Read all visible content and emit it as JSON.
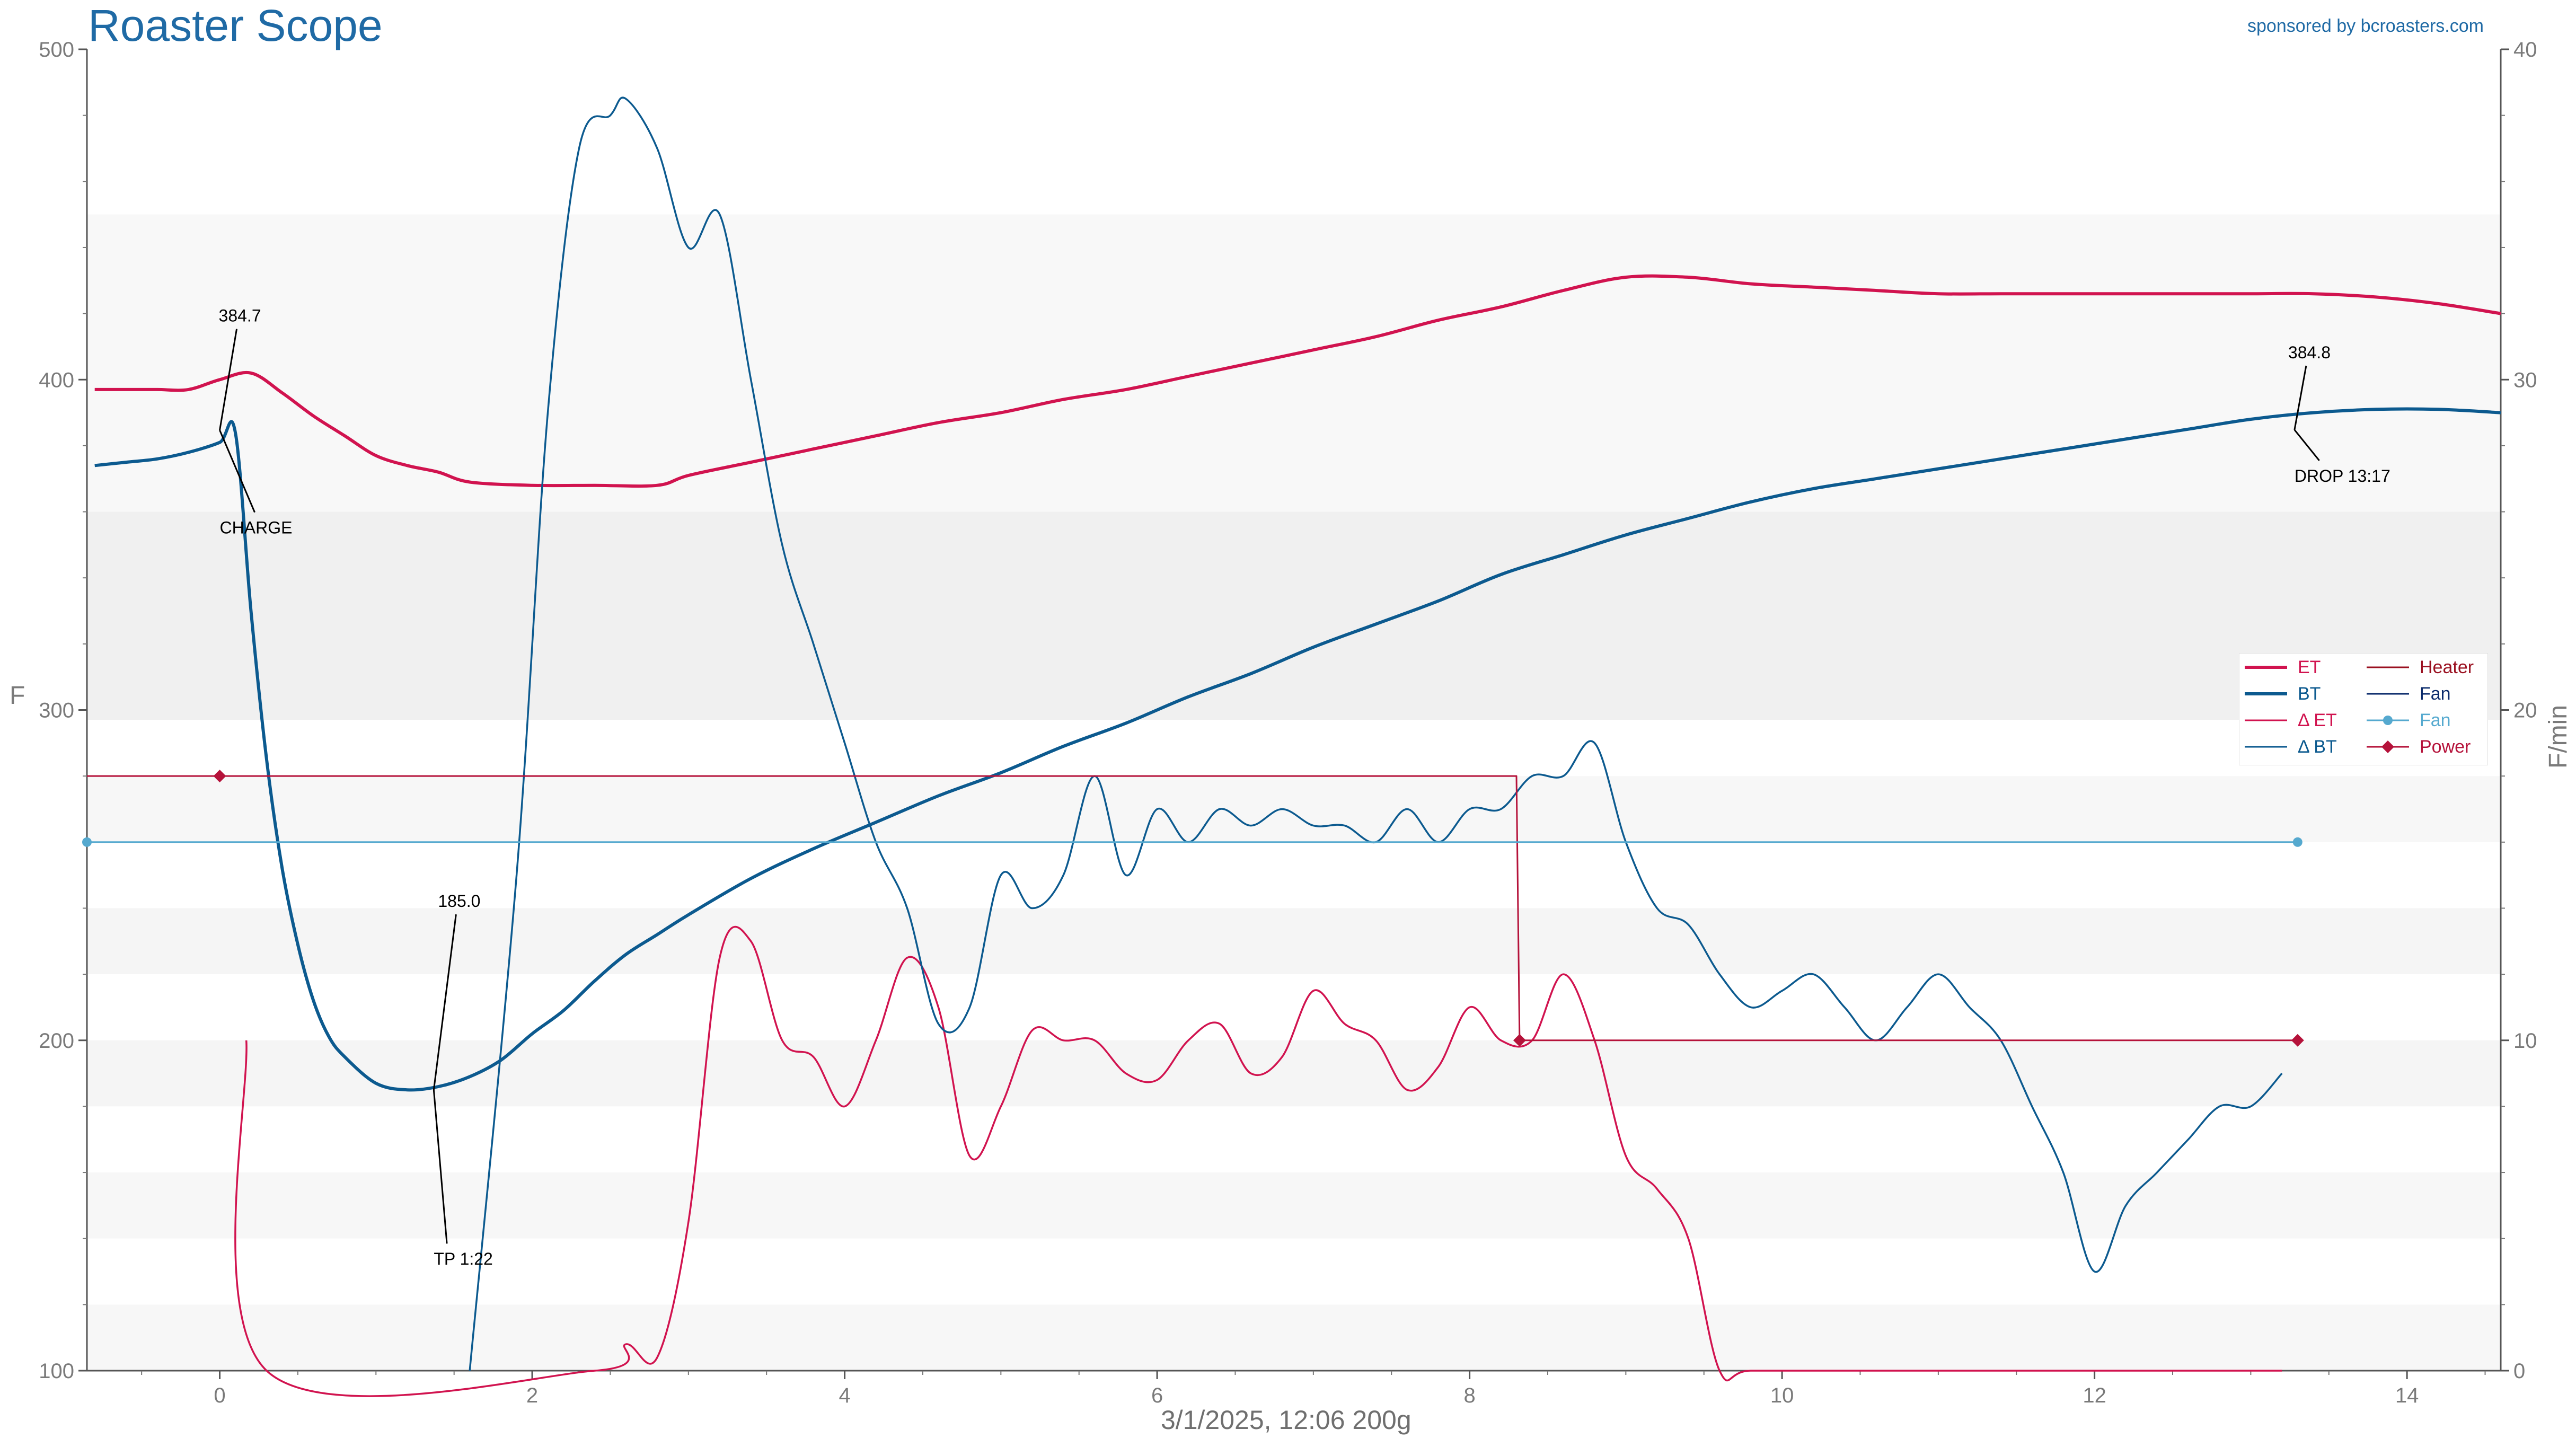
{
  "header": {
    "title": "Roaster Scope",
    "sponsor": "sponsored by bcroasters.com",
    "subtitle": "3/1/2025, 12:06   200g"
  },
  "colors": {
    "et": "#d1134f",
    "bt": "#0c5a8f",
    "delta_et": "#d1134f",
    "delta_bt": "#0c5a8f",
    "heater": "#b5123a",
    "fan": "#55a9cf",
    "power": "#b5123a",
    "title": "#1f6aa5"
  },
  "legend": [
    {
      "label": "ET",
      "color": "#d1134f",
      "style": "thick"
    },
    {
      "label": "BT",
      "color": "#0c5a8f",
      "style": "thick"
    },
    {
      "label": "Δ ET",
      "color": "#d1134f",
      "style": "thin"
    },
    {
      "label": "Δ BT",
      "color": "#0c5a8f",
      "style": "thin"
    },
    {
      "label": "Heater",
      "color": "#9a1020",
      "style": "thin"
    },
    {
      "label": "Fan",
      "color": "#0a2a6b",
      "style": "thin"
    },
    {
      "label": "Fan",
      "color": "#55a9cf",
      "style": "dot"
    },
    {
      "label": "Power",
      "color": "#b5123a",
      "style": "diamond"
    }
  ],
  "chart_data": {
    "type": "line",
    "xlim": [
      -0.85,
      14.6
    ],
    "x_ticks": [
      0,
      2,
      4,
      6,
      8,
      10,
      12,
      14
    ],
    "ylabel": "F",
    "ylim": [
      100,
      500
    ],
    "y_ticks": [
      100,
      200,
      300,
      400,
      500
    ],
    "y2label": "F/min",
    "y2lim": [
      0,
      40
    ],
    "y2_ticks": [
      0,
      10,
      20,
      30,
      40
    ],
    "series": [
      {
        "name": "ET",
        "axis": "left",
        "x": [
          -0.8,
          -0.6,
          -0.4,
          -0.2,
          0,
          0.2,
          0.4,
          0.6,
          0.8,
          1,
          1.2,
          1.4,
          1.6,
          2,
          2.4,
          2.8,
          3,
          3.4,
          3.8,
          4.2,
          4.6,
          5,
          5.4,
          5.8,
          6.2,
          6.6,
          7,
          7.4,
          7.8,
          8.2,
          8.6,
          9,
          9.4,
          9.8,
          10.2,
          10.6,
          11,
          11.4,
          11.8,
          12.2,
          12.6,
          13,
          13.4,
          13.8,
          14.2,
          14.6
        ],
        "y": [
          397,
          397,
          397,
          397,
          400,
          402,
          396,
          389,
          383,
          377,
          374,
          372,
          369,
          368,
          368,
          368,
          371,
          375,
          379,
          383,
          387,
          390,
          394,
          397,
          401,
          405,
          409,
          413,
          418,
          422,
          427,
          431,
          431,
          429,
          428,
          427,
          426,
          426,
          426,
          426,
          426,
          426,
          426,
          425,
          423,
          420
        ]
      },
      {
        "name": "BT",
        "axis": "left",
        "x": [
          -0.8,
          -0.6,
          -0.4,
          -0.2,
          0,
          0.1,
          0.2,
          0.3,
          0.4,
          0.5,
          0.6,
          0.7,
          0.8,
          1,
          1.2,
          1.4,
          1.6,
          1.8,
          2,
          2.2,
          2.4,
          2.6,
          2.8,
          3,
          3.4,
          3.8,
          4.2,
          4.6,
          5,
          5.4,
          5.8,
          6.2,
          6.6,
          7,
          7.4,
          7.8,
          8.2,
          8.6,
          9,
          9.4,
          9.8,
          10.2,
          10.6,
          11,
          11.4,
          11.8,
          12.2,
          12.6,
          13,
          13.4,
          13.8,
          14.2,
          14.6
        ],
        "y": [
          374,
          375,
          376,
          378,
          381,
          384,
          330,
          285,
          252,
          229,
          212,
          201,
          195,
          187,
          185,
          186,
          189,
          194,
          202,
          209,
          218,
          226,
          232,
          238,
          249,
          258,
          266,
          274,
          281,
          289,
          296,
          304,
          311,
          319,
          326,
          333,
          341,
          347,
          353,
          358,
          363,
          367,
          370,
          373,
          376,
          379,
          382,
          385,
          388,
          390,
          391,
          391,
          390
        ]
      },
      {
        "name": "Δ ET",
        "axis": "right",
        "x": [
          0.17,
          0.3,
          2.4,
          2.6,
          2.8,
          3,
          3.2,
          3.4,
          3.6,
          3.8,
          4,
          4.2,
          4.4,
          4.6,
          4.8,
          5,
          5.2,
          5.4,
          5.6,
          5.8,
          6,
          6.2,
          6.4,
          6.6,
          6.8,
          7,
          7.2,
          7.4,
          7.6,
          7.8,
          8,
          8.2,
          8.4,
          8.6,
          8.8,
          9,
          9.2,
          9.4,
          9.6,
          9.8,
          10.5,
          11.2,
          12,
          12.6,
          13.2
        ],
        "y": [
          10,
          0,
          0,
          0.8,
          0.4,
          4.5,
          12.5,
          13,
          10,
          9.5,
          8,
          10,
          12.5,
          11,
          6.5,
          8,
          10.3,
          10,
          10,
          9,
          8.8,
          10,
          10.5,
          9,
          9.5,
          11.5,
          10.5,
          10,
          8.5,
          9.2,
          11,
          10,
          10,
          12,
          10,
          6.5,
          5.5,
          4,
          0,
          0,
          0,
          0,
          0,
          0,
          0
        ]
      },
      {
        "name": "Δ BT",
        "axis": "right",
        "x": [
          1.6,
          1.9,
          2.1,
          2.3,
          2.5,
          2.6,
          2.8,
          3,
          3.2,
          3.4,
          3.6,
          3.8,
          4,
          4.2,
          4.4,
          4.6,
          4.8,
          5,
          5.2,
          5.4,
          5.6,
          5.8,
          6,
          6.2,
          6.4,
          6.6,
          6.8,
          7,
          7.2,
          7.4,
          7.6,
          7.8,
          8,
          8.2,
          8.4,
          8.6,
          8.8,
          9,
          9.2,
          9.4,
          9.6,
          9.8,
          10,
          10.2,
          10.4,
          10.6,
          10.8,
          11,
          11.2,
          11.4,
          11.6,
          11.8,
          12,
          12.2,
          12.4,
          12.6,
          12.8,
          13,
          13.2
        ],
        "y": [
          0,
          15,
          29,
          37,
          38,
          38.5,
          37,
          34,
          35,
          30,
          25,
          22,
          19,
          16,
          14,
          10.5,
          11,
          15,
          14,
          15,
          18,
          15,
          17,
          16,
          17,
          16.5,
          17,
          16.5,
          16.5,
          16,
          17,
          16,
          17,
          17,
          18,
          18,
          19,
          16,
          14,
          13.5,
          12,
          11,
          11.5,
          12,
          11,
          10,
          11,
          12,
          11,
          10,
          8,
          6,
          3,
          5,
          6,
          7,
          8,
          8,
          9
        ]
      },
      {
        "name": "Heater",
        "axis": "left",
        "x": [
          -0.85,
          0,
          8.3,
          8.32,
          13.3
        ],
        "y": [
          280,
          280,
          280,
          200,
          200
        ]
      },
      {
        "name": "Fan",
        "axis": "left",
        "x": [
          -0.85,
          0,
          13.3
        ],
        "y": [
          260,
          260,
          260
        ]
      },
      {
        "name": "Power",
        "axis": "left",
        "x": [
          0,
          8.32,
          13.3
        ],
        "y": [
          280,
          200,
          200
        ]
      }
    ],
    "events": [
      {
        "label": "CHARGE",
        "value_label": "384.7",
        "x": 0,
        "y": 384.7
      },
      {
        "label": "TP 1:22",
        "value_label": "185.0",
        "x": 1.37,
        "y": 185.0
      },
      {
        "label": "DROP 13:17",
        "value_label": "384.8",
        "x": 13.28,
        "y": 384.8
      }
    ]
  }
}
